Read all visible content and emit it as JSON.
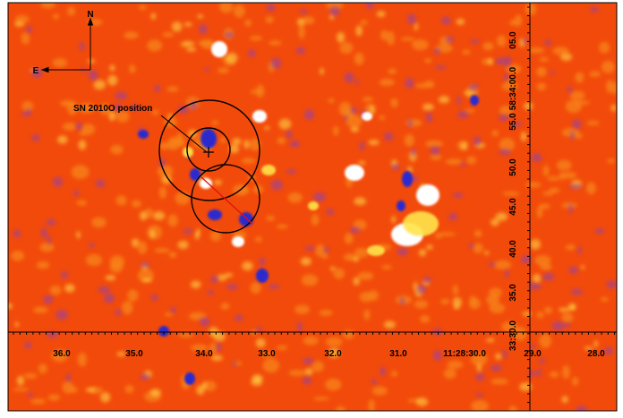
{
  "compass": {
    "north": "N",
    "east": "E"
  },
  "annotation": {
    "label": "SN 2010O position"
  },
  "x_axis": {
    "ticks": [
      "36.0",
      "35.0",
      "34.0",
      "33.0",
      "32.0",
      "31.0",
      "11:28:30.0",
      "29.0",
      "28.0"
    ]
  },
  "y_axis": {
    "ticks": [
      "05.0",
      "58:34:00.0",
      "55.0",
      "50.0",
      "45.0",
      "40.0",
      "35.0",
      "33:30.0"
    ]
  },
  "colors": {
    "background": "#f24a0a",
    "bright_spot": "#ffffff",
    "medium_spot": "#ffe44a",
    "dark_spot": "#2c2ccf",
    "axis_line": "#000000",
    "marker_line": "#e01010"
  }
}
